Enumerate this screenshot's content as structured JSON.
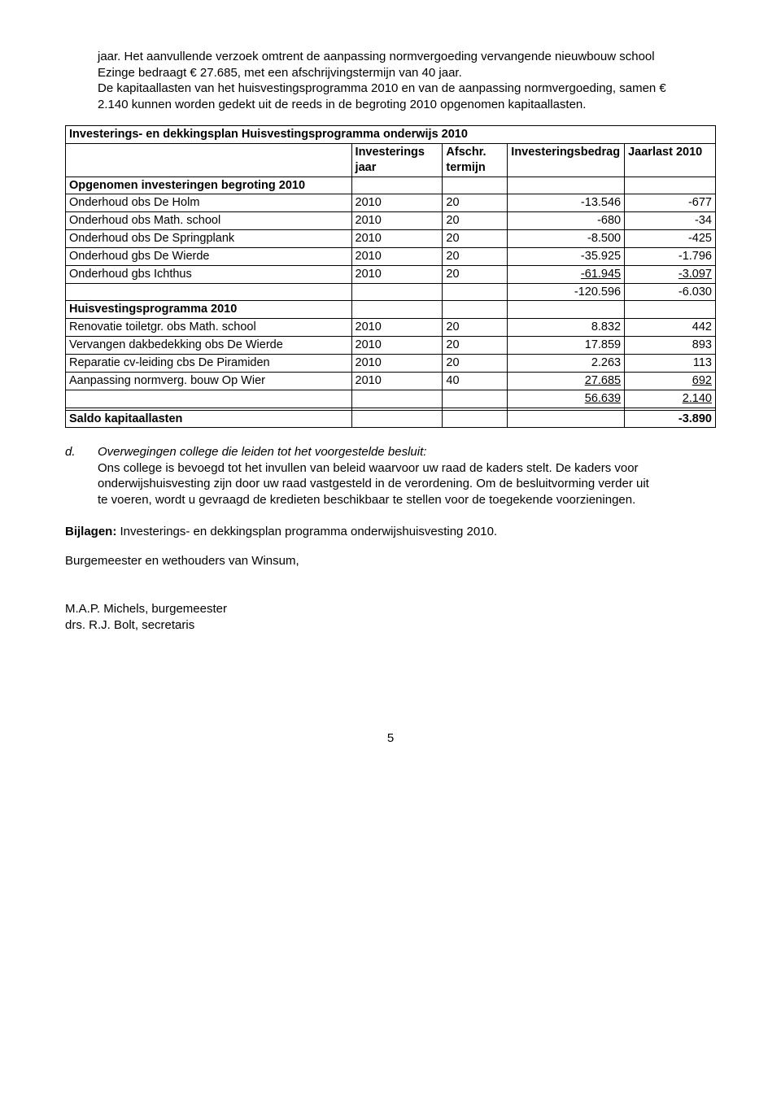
{
  "para1": "jaar. Het aanvullende verzoek omtrent de aanpassing normvergoeding vervangende nieuwbouw school Ezinge bedraagt € 27.685, met een afschrijvingstermijn van 40 jaar.\nDe kapitaallasten van het huisvestingsprogramma 2010 en van de aanpassing normvergoeding, samen € 2.140 kunnen worden gedekt uit de reeds in de begroting 2010 opgenomen kapitaallasten.",
  "table": {
    "title": "Investerings- en dekkingsplan Huisvestingsprogramma onderwijs 2010",
    "headers": {
      "c2": "Investerings jaar",
      "c3": "Afschr. termijn",
      "c4": "Investeringsbedrag",
      "c5": "Jaarlast 2010"
    },
    "section1": "Opgenomen investeringen begroting 2010",
    "rows1": [
      [
        "Onderhoud obs De Holm",
        "2010",
        "20",
        "-13.546",
        "-677"
      ],
      [
        "Onderhoud obs Math. school",
        "2010",
        "20",
        "-680",
        "-34"
      ],
      [
        "Onderhoud obs De Springplank",
        "2010",
        "20",
        "-8.500",
        "-425"
      ],
      [
        "Onderhoud gbs De Wierde",
        "2010",
        "20",
        "-35.925",
        "-1.796"
      ],
      [
        "Onderhoud gbs Ichthus",
        "2010",
        "20",
        "-61.945",
        "-3.097"
      ]
    ],
    "subtotal1": [
      "-120.596",
      "-6.030"
    ],
    "section2": "Huisvestingsprogramma 2010",
    "rows2": [
      [
        "Renovatie toiletgr. obs Math. school",
        "2010",
        "20",
        "8.832",
        "442"
      ],
      [
        "Vervangen dakbedekking obs De Wierde",
        "2010",
        "20",
        "17.859",
        "893"
      ],
      [
        "Reparatie cv-leiding cbs De Piramiden",
        "2010",
        "20",
        "2.263",
        "113"
      ],
      [
        "Aanpassing normverg. bouw Op Wier",
        "2010",
        "40",
        "27.685",
        "692"
      ]
    ],
    "subtotal2": [
      "56.639",
      "2.140"
    ],
    "saldo_label": "Saldo kapitaallasten",
    "saldo_value": "-3.890"
  },
  "section_d": {
    "marker": "d.",
    "title": "Overwegingen college die leiden tot het voorgestelde besluit:",
    "body": "Ons college is bevoegd tot het invullen van beleid waarvoor uw raad de kaders stelt. De kaders voor onderwijshuisvesting zijn door uw raad vastgesteld in de verordening. Om de besluitvorming verder uit te voeren, wordt u gevraagd de kredieten beschikbaar te stellen voor de toegekende voorzieningen."
  },
  "bijlagen_label": "Bijlagen:",
  "bijlagen_text": " Investerings- en dekkingsplan programma onderwijshuisvesting 2010.",
  "burg": "Burgemeester en wethouders van Winsum,",
  "sign1": "M.A.P. Michels, burgemeester",
  "sign2": "drs. R.J. Bolt, secretaris",
  "page": "5"
}
